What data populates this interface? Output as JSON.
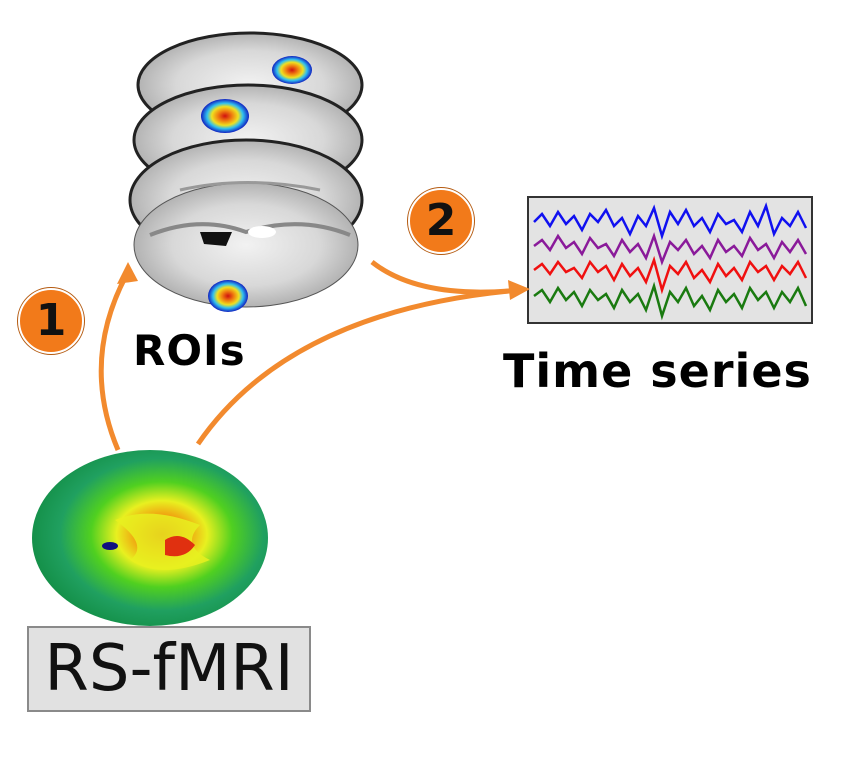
{
  "steps": [
    {
      "number": "1"
    },
    {
      "number": "2"
    }
  ],
  "labels": {
    "rois": "ROIs",
    "time_series": "Time series",
    "input": "RS-fMRI"
  },
  "colors": {
    "arrow": "#f28a2e",
    "badge": "#f27a1a",
    "panel_bg": "#e3e3e3",
    "trace_blue": "#1010f0",
    "trace_purple": "#8a1a9a",
    "trace_red": "#f01010",
    "trace_green": "#1a7a10"
  },
  "icons": [
    "brain-slice-stack-icon",
    "brain-heatmap-icon",
    "time-series-panel-icon"
  ]
}
